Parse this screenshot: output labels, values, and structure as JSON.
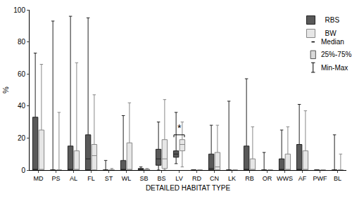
{
  "chart_data": {
    "type": "box",
    "x_label": "DETAILED HABITAT TYPE",
    "y_label": "%",
    "categories": [
      "MD",
      "PS",
      "AL",
      "FL",
      "ST",
      "WL",
      "SB",
      "BS",
      "LV",
      "RD",
      "CN",
      "LK",
      "RB",
      "OR",
      "WWS",
      "AF",
      "PWF",
      "BL"
    ],
    "series": [
      {
        "name": "RBS",
        "color": "#595959",
        "min": [
          0,
          0,
          0,
          0,
          0,
          0,
          0,
          0,
          4,
          0,
          0,
          0,
          0,
          0,
          0,
          0,
          0,
          0
        ],
        "q1": [
          0,
          0,
          0,
          0,
          0,
          0,
          0,
          3,
          8,
          0,
          0,
          0,
          0,
          0,
          0,
          0,
          0,
          0
        ],
        "median": [
          0,
          0,
          0,
          7,
          0,
          0,
          0.5,
          7,
          10,
          0,
          1,
          0,
          0,
          0,
          0,
          0,
          0,
          0
        ],
        "q3": [
          33,
          0,
          15,
          22,
          0,
          6,
          1,
          13,
          12,
          0,
          10,
          0,
          15,
          0,
          7,
          16,
          0,
          0
        ],
        "max": [
          73,
          93,
          96,
          95,
          6,
          34,
          2,
          30,
          36,
          0,
          28,
          43,
          57,
          11,
          25,
          41,
          0,
          22
        ]
      },
      {
        "name": "BW",
        "color": "#e6e6e6",
        "min": [
          0,
          0,
          0,
          0,
          0,
          0,
          0,
          0,
          2,
          0,
          0,
          0,
          0,
          0,
          0,
          0,
          0,
          0
        ],
        "q1": [
          0,
          0,
          0,
          0,
          0,
          0,
          0,
          1,
          12,
          0,
          0,
          0,
          0,
          0,
          0,
          0,
          0,
          0
        ],
        "median": [
          0,
          0,
          0,
          9,
          0,
          0,
          0,
          7,
          16,
          0,
          2,
          0,
          0,
          0,
          0,
          0,
          0,
          0
        ],
        "q3": [
          25,
          0,
          12,
          16,
          0,
          17,
          0.5,
          19,
          19,
          0,
          11,
          0,
          7,
          0,
          10,
          12,
          0,
          0
        ],
        "max": [
          66,
          36,
          67,
          47,
          1,
          42,
          1,
          44,
          30,
          0,
          28,
          0,
          27,
          0,
          27,
          37,
          0,
          10
        ]
      }
    ],
    "ylim": [
      0,
      100
    ],
    "yticks": [
      0,
      20,
      40,
      60,
      80,
      100
    ],
    "grid": false,
    "legend": "top-right",
    "key_labels": [
      "Median",
      "25%-75%",
      "Min-Max"
    ],
    "annotations": [
      {
        "text": "*",
        "category": "LV"
      }
    ]
  }
}
